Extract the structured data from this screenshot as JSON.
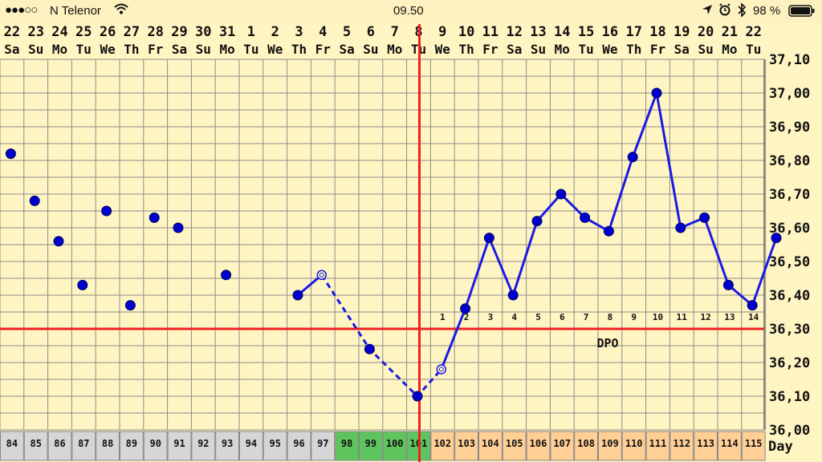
{
  "status_bar": {
    "carrier": "N Telenor",
    "time": "09.50",
    "battery": "98 %",
    "icons": [
      "signal-dots-icon",
      "wifi-icon",
      "location-arrow-icon",
      "alarm-icon",
      "bluetooth-icon",
      "battery-icon"
    ]
  },
  "chart_data": {
    "type": "line",
    "date_labels": [
      "22",
      "23",
      "24",
      "25",
      "26",
      "27",
      "28",
      "29",
      "30",
      "31",
      "1",
      "2",
      "3",
      "4",
      "5",
      "6",
      "7",
      "8",
      "9",
      "10",
      "11",
      "12",
      "13",
      "14",
      "15",
      "16",
      "17",
      "18",
      "19",
      "20",
      "21",
      "22"
    ],
    "weekday_labels": [
      "Sa",
      "Su",
      "Mo",
      "Tu",
      "We",
      "Th",
      "Fr",
      "Sa",
      "Su",
      "Mo",
      "Tu",
      "We",
      "Th",
      "Fr",
      "Sa",
      "Su",
      "Mo",
      "Tu",
      "We",
      "Th",
      "Fr",
      "Sa",
      "Su",
      "Mo",
      "Tu",
      "We",
      "Th",
      "Fr",
      "Sa",
      "Su",
      "Mo",
      "Tu"
    ],
    "day_numbers": [
      "84",
      "85",
      "86",
      "87",
      "88",
      "89",
      "90",
      "91",
      "92",
      "93",
      "94",
      "95",
      "96",
      "97",
      "98",
      "99",
      "100",
      "101",
      "102",
      "103",
      "104",
      "105",
      "106",
      "107",
      "108",
      "109",
      "110",
      "111",
      "112",
      "113",
      "114",
      "115"
    ],
    "day_cell_status": [
      "none",
      "none",
      "none",
      "none",
      "none",
      "none",
      "none",
      "none",
      "none",
      "none",
      "none",
      "none",
      "none",
      "none",
      "fertile",
      "fertile",
      "fertile",
      "fertile",
      "luteal",
      "luteal",
      "luteal",
      "luteal",
      "luteal",
      "luteal",
      "luteal",
      "luteal",
      "luteal",
      "luteal",
      "luteal",
      "luteal",
      "luteal",
      "luteal"
    ],
    "status_colors": {
      "none": "#d6d6d6",
      "fertile": "#5ec45e",
      "luteal": "#ffcf96"
    },
    "day_axis_label": "Day",
    "y_tick_labels": [
      "37,10",
      "37,00",
      "36,90",
      "36,80",
      "36,70",
      "36,60",
      "36,50",
      "36,40",
      "36,30",
      "36,20",
      "36,10",
      "36,00"
    ],
    "ylim": [
      36.0,
      37.1
    ],
    "series": [
      {
        "style": "points",
        "points": [
          [
            0,
            36.82
          ],
          [
            1,
            36.68
          ],
          [
            2,
            36.56
          ],
          [
            3,
            36.43
          ],
          [
            4,
            36.65
          ],
          [
            5,
            36.37
          ],
          [
            6,
            36.63
          ],
          [
            7,
            36.6
          ],
          [
            9,
            36.46
          ]
        ]
      },
      {
        "style": "solid",
        "points": [
          [
            12,
            36.4
          ],
          [
            13,
            36.46
          ]
        ]
      },
      {
        "style": "dashed",
        "points": [
          [
            13,
            36.46
          ],
          [
            15,
            36.24
          ],
          [
            17,
            36.1
          ],
          [
            18,
            36.18
          ]
        ]
      },
      {
        "style": "solid",
        "points": [
          [
            18,
            36.18
          ],
          [
            19,
            36.36
          ],
          [
            20,
            36.57
          ],
          [
            21,
            36.4
          ],
          [
            22,
            36.62
          ],
          [
            23,
            36.7
          ],
          [
            24,
            36.63
          ],
          [
            25,
            36.59
          ],
          [
            26,
            36.81
          ],
          [
            27,
            37.0
          ],
          [
            28,
            36.6
          ],
          [
            29,
            36.63
          ],
          [
            30,
            36.43
          ],
          [
            31,
            36.37
          ],
          [
            32,
            36.57
          ]
        ]
      }
    ],
    "hollow_points": [
      13,
      18
    ],
    "coverline": 36.3,
    "ovulation_day_index": 17,
    "dpo_labels": [
      "1",
      "2",
      "3",
      "4",
      "5",
      "6",
      "7",
      "8",
      "9",
      "10",
      "11",
      "12",
      "13",
      "14"
    ],
    "dpo_text": "DPO",
    "colors": {
      "line": "#1a1ae6",
      "point": "#0000cc",
      "reference": "#ee2222",
      "grid": "#8c8c8c",
      "background": "#fff5c2"
    },
    "grid": true
  }
}
